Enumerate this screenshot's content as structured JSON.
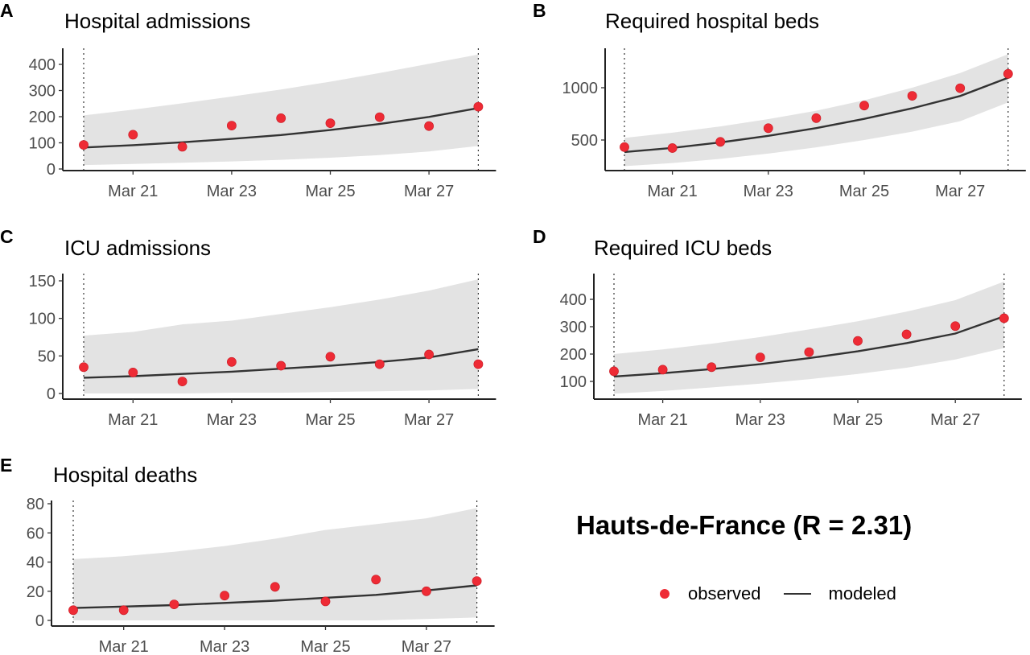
{
  "figure": {
    "region_title": "Hauts-de-France (R = 2.31)",
    "legend": {
      "observed": "observed",
      "modeled": "modeled"
    },
    "colors": {
      "observed": "#ee2b35",
      "modeled": "#333333",
      "band": "#e3e3e3"
    }
  },
  "chart_data": [
    {
      "panel": "A",
      "title": "Hospital admissions",
      "type": "scatter",
      "x": [
        "Mar 20",
        "Mar 21",
        "Mar 22",
        "Mar 23",
        "Mar 24",
        "Mar 25",
        "Mar 26",
        "Mar 27",
        "Mar 28"
      ],
      "x_ticks": [
        "Mar 21",
        "Mar 23",
        "Mar 25",
        "Mar 27"
      ],
      "y_ticks": [
        0,
        100,
        200,
        300,
        400
      ],
      "ylim": [
        0,
        460
      ],
      "observed": [
        92,
        131,
        85,
        166,
        194,
        175,
        198,
        164,
        238
      ],
      "modeled": [
        82,
        91,
        102,
        115,
        130,
        149,
        172,
        199,
        233
      ],
      "band_low": [
        15,
        19,
        24,
        29,
        35,
        43,
        53,
        67,
        88
      ],
      "band_high": [
        205,
        227,
        251,
        277,
        304,
        334,
        367,
        402,
        438
      ]
    },
    {
      "panel": "B",
      "title": "Required hospital beds",
      "type": "scatter",
      "x": [
        "Mar 20",
        "Mar 21",
        "Mar 22",
        "Mar 23",
        "Mar 24",
        "Mar 25",
        "Mar 26",
        "Mar 27",
        "Mar 28"
      ],
      "x_ticks": [
        "Mar 21",
        "Mar 23",
        "Mar 25",
        "Mar 27"
      ],
      "y_ticks": [
        500,
        1000
      ],
      "ylim": [
        260,
        1360
      ],
      "observed": [
        432,
        423,
        482,
        613,
        709,
        829,
        922,
        995,
        1132
      ],
      "modeled": [
        385,
        425,
        477,
        540,
        614,
        702,
        803,
        921,
        1095
      ],
      "band_low": [
        250,
        280,
        320,
        370,
        430,
        500,
        580,
        680,
        860
      ],
      "band_high": [
        520,
        570,
        630,
        700,
        780,
        880,
        1000,
        1140,
        1320
      ]
    },
    {
      "panel": "C",
      "title": "ICU admissions",
      "type": "scatter",
      "x": [
        "Mar 20",
        "Mar 21",
        "Mar 22",
        "Mar 23",
        "Mar 24",
        "Mar 25",
        "Mar 26",
        "Mar 27",
        "Mar 28"
      ],
      "x_ticks": [
        "Mar 21",
        "Mar 23",
        "Mar 25",
        "Mar 27"
      ],
      "y_ticks": [
        0,
        50,
        100,
        150
      ],
      "ylim": [
        0,
        155
      ],
      "observed": [
        35,
        28,
        16,
        42,
        37,
        49,
        39,
        52,
        39
      ],
      "modeled": [
        21,
        23,
        26,
        29,
        33,
        37,
        42,
        48,
        59
      ],
      "band_low": [
        0,
        0,
        0,
        1,
        1,
        2,
        3,
        4,
        6
      ],
      "band_high": [
        77,
        82,
        92,
        97,
        106,
        115,
        125,
        137,
        152
      ]
    },
    {
      "panel": "D",
      "title": "Required ICU beds",
      "type": "scatter",
      "x": [
        "Mar 20",
        "Mar 21",
        "Mar 22",
        "Mar 23",
        "Mar 24",
        "Mar 25",
        "Mar 26",
        "Mar 27",
        "Mar 28"
      ],
      "x_ticks": [
        "Mar 21",
        "Mar 23",
        "Mar 25",
        "Mar 27"
      ],
      "y_ticks": [
        100,
        200,
        300,
        400
      ],
      "ylim": [
        40,
        470
      ],
      "observed": [
        137,
        143,
        152,
        188,
        207,
        248,
        272,
        302,
        331
      ],
      "modeled": [
        118,
        130,
        145,
        163,
        185,
        210,
        240,
        275,
        338
      ],
      "band_low": [
        55,
        65,
        78,
        92,
        108,
        127,
        150,
        180,
        222
      ],
      "band_high": [
        200,
        217,
        238,
        262,
        290,
        320,
        355,
        397,
        465
      ]
    },
    {
      "panel": "E",
      "title": "Hospital deaths",
      "type": "scatter",
      "x": [
        "Mar 20",
        "Mar 21",
        "Mar 22",
        "Mar 23",
        "Mar 24",
        "Mar 25",
        "Mar 26",
        "Mar 27",
        "Mar 28"
      ],
      "x_ticks": [
        "Mar 21",
        "Mar 23",
        "Mar 25",
        "Mar 27"
      ],
      "y_ticks": [
        0,
        20,
        40,
        60,
        80
      ],
      "ylim": [
        0,
        80
      ],
      "observed": [
        7,
        7,
        11,
        17,
        23,
        13,
        28,
        20,
        27
      ],
      "modeled": [
        8.5,
        9.5,
        10.5,
        12,
        13.5,
        15.5,
        17.5,
        20.5,
        24
      ],
      "band_low": [
        0,
        0,
        0,
        0,
        0,
        0,
        0,
        1,
        2
      ],
      "band_high": [
        42,
        44,
        47,
        51,
        56,
        62,
        66,
        70,
        77
      ]
    }
  ]
}
